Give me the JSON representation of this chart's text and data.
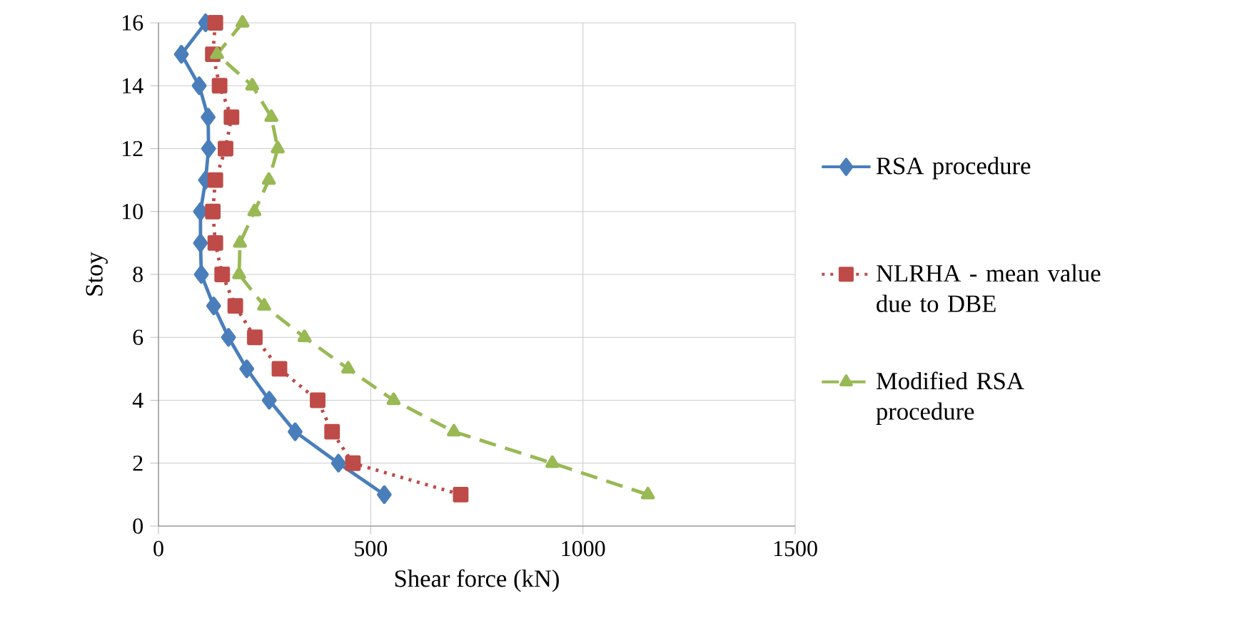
{
  "chart_data": {
    "type": "line",
    "xlabel": "Shear force (kN)",
    "ylabel": "Stoy",
    "xlim": [
      0,
      1500
    ],
    "xticks": [
      0,
      500,
      1000,
      1500
    ],
    "ylim": [
      0,
      16
    ],
    "yticks": [
      0,
      2,
      4,
      6,
      8,
      10,
      12,
      14,
      16
    ],
    "grid": true,
    "legend": "right",
    "series": [
      {
        "name": "RSA procedure",
        "color": "#4a7ebb",
        "marker": "diamond",
        "line_style": "solid",
        "x": [
          532,
          424,
          322,
          261,
          208,
          165,
          130,
          101,
          99,
          99,
          111,
          118,
          117,
          96,
          54,
          111
        ],
        "values": [
          1,
          2,
          3,
          4,
          5,
          6,
          7,
          8,
          9,
          10,
          11,
          12,
          13,
          14,
          15,
          16
        ]
      },
      {
        "name": "NLRHA - mean value due to DBE",
        "color": "#be4b48",
        "marker": "square",
        "line_style": "dotted",
        "x": [
          712,
          458,
          409,
          375,
          285,
          227,
          181,
          150,
          134,
          128,
          134,
          158,
          172,
          144,
          128,
          134
        ],
        "values": [
          1,
          2,
          3,
          4,
          5,
          6,
          7,
          8,
          9,
          10,
          11,
          12,
          13,
          14,
          15,
          16
        ]
      },
      {
        "name": "Modified RSA procedure",
        "color": "#98b954",
        "marker": "triangle",
        "line_style": "dashed",
        "x": [
          1153,
          928,
          696,
          554,
          447,
          344,
          249,
          190,
          192,
          226,
          260,
          281,
          266,
          221,
          138,
          198
        ],
        "values": [
          1,
          2,
          3,
          4,
          5,
          6,
          7,
          8,
          9,
          10,
          11,
          12,
          13,
          14,
          15,
          16
        ]
      }
    ]
  }
}
